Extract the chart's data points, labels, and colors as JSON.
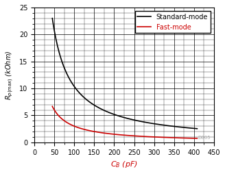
{
  "xlim": [
    0,
    450
  ],
  "ylim": [
    0,
    25
  ],
  "xticks_major": [
    0,
    50,
    100,
    150,
    200,
    250,
    300,
    350,
    400,
    450
  ],
  "yticks_major": [
    0,
    5,
    10,
    15,
    20,
    25
  ],
  "xticks_minor_step": 25,
  "yticks_minor_step": 1,
  "standard_mode_color": "#000000",
  "fast_mode_color": "#cc0000",
  "legend_labels": [
    "Standard-mode",
    "Fast-mode"
  ],
  "legend_colors": [
    "#000000",
    "#cc0000"
  ],
  "cb_start": 45,
  "cb_end": 408,
  "standard_k": 1035,
  "fast_k": 300,
  "watermark": "D005",
  "background_color": "#ffffff",
  "xlabel": "$C_B$ (pF)",
  "ylabel": "$R_{p(max)}$ (kOhm)"
}
